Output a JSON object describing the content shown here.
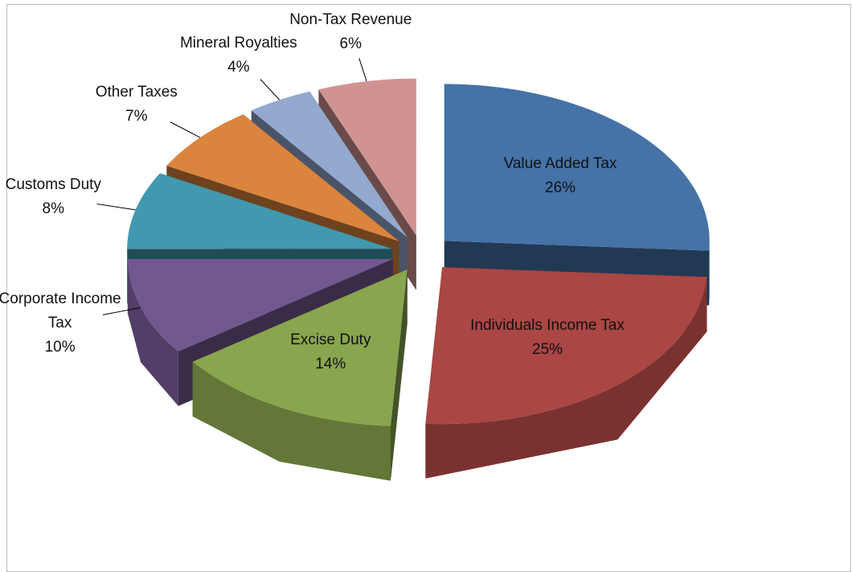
{
  "chart_data": {
    "type": "pie3d",
    "categories": [
      "Value Added Tax",
      "Individuals Income Tax",
      "Excise Duty",
      "Corporate Income Tax",
      "Customs Duty",
      "Other Taxes",
      "Mineral Royalties",
      "Non-Tax Revenue"
    ],
    "values": [
      26,
      25,
      14,
      10,
      8,
      7,
      4,
      6
    ],
    "value_labels": [
      "26%",
      "25%",
      "14%",
      "10%",
      "8%",
      "7%",
      "4%",
      "6%"
    ],
    "colors": [
      "#4572a7",
      "#aa4643",
      "#89a54e",
      "#71588f",
      "#4198af",
      "#db843d",
      "#93a9cf",
      "#d19392"
    ]
  }
}
